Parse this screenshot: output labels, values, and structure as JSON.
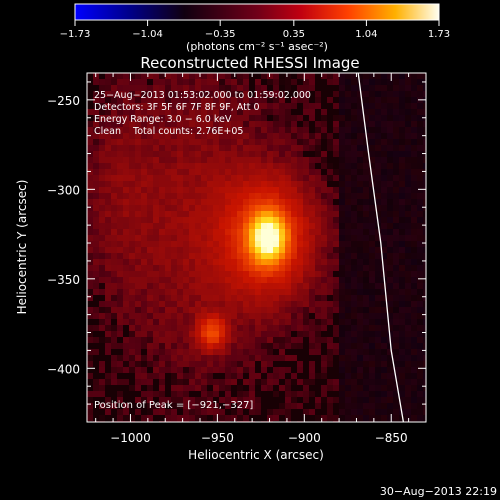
{
  "chart_data": {
    "type": "heatmap",
    "title": "Reconstructed RHESSI Image",
    "xlabel": "Heliocentric X (arcsec)",
    "ylabel": "Heliocentric Y (arcsec)",
    "xlim": [
      -1025,
      -830
    ],
    "ylim": [
      -430,
      -235
    ],
    "x_ticks": [
      -1000,
      -950,
      -900,
      -850
    ],
    "x_tick_labels": [
      "−1000",
      "−950",
      "−900",
      "−850"
    ],
    "y_ticks": [
      -250,
      -300,
      -350,
      -400
    ],
    "y_tick_labels": [
      "−250",
      "−300",
      "−350",
      "−400"
    ],
    "colorbar": {
      "min": -1.73,
      "max": 1.73,
      "ticks": [
        -1.73,
        -1.04,
        -0.35,
        0.35,
        1.04,
        1.73
      ],
      "tick_labels": [
        "−1.73",
        "−1.04",
        "−0.35",
        "0.35",
        "1.04",
        "1.73"
      ],
      "units_label": "(photons cm⁻² s⁻¹ asec⁻²)"
    },
    "info_lines": [
      "25−Aug−2013 01:53:02.000 to 01:59:02.000",
      "Detectors: 3F 5F 6F 7F 8F 9F, Att 0",
      "Energy Range: 3.0 − 6.0 keV",
      "Clean    Total counts: 2.76E+05"
    ],
    "peak_label": "Position of Peak = [−921,−327]",
    "peak_position": [
      -921,
      -327
    ],
    "sources": [
      {
        "x": -921,
        "y": -327,
        "amplitude": 1.73
      },
      {
        "x": -953,
        "y": -380,
        "amplitude": 0.62
      }
    ],
    "limb": {
      "x": [
        -869,
        -863,
        -856,
        -850,
        -843
      ],
      "y": [
        -235,
        -280,
        -330,
        -390,
        -430
      ]
    },
    "grid": false
  },
  "footer": {
    "timestamp": "30−Aug−2013 22:19"
  }
}
